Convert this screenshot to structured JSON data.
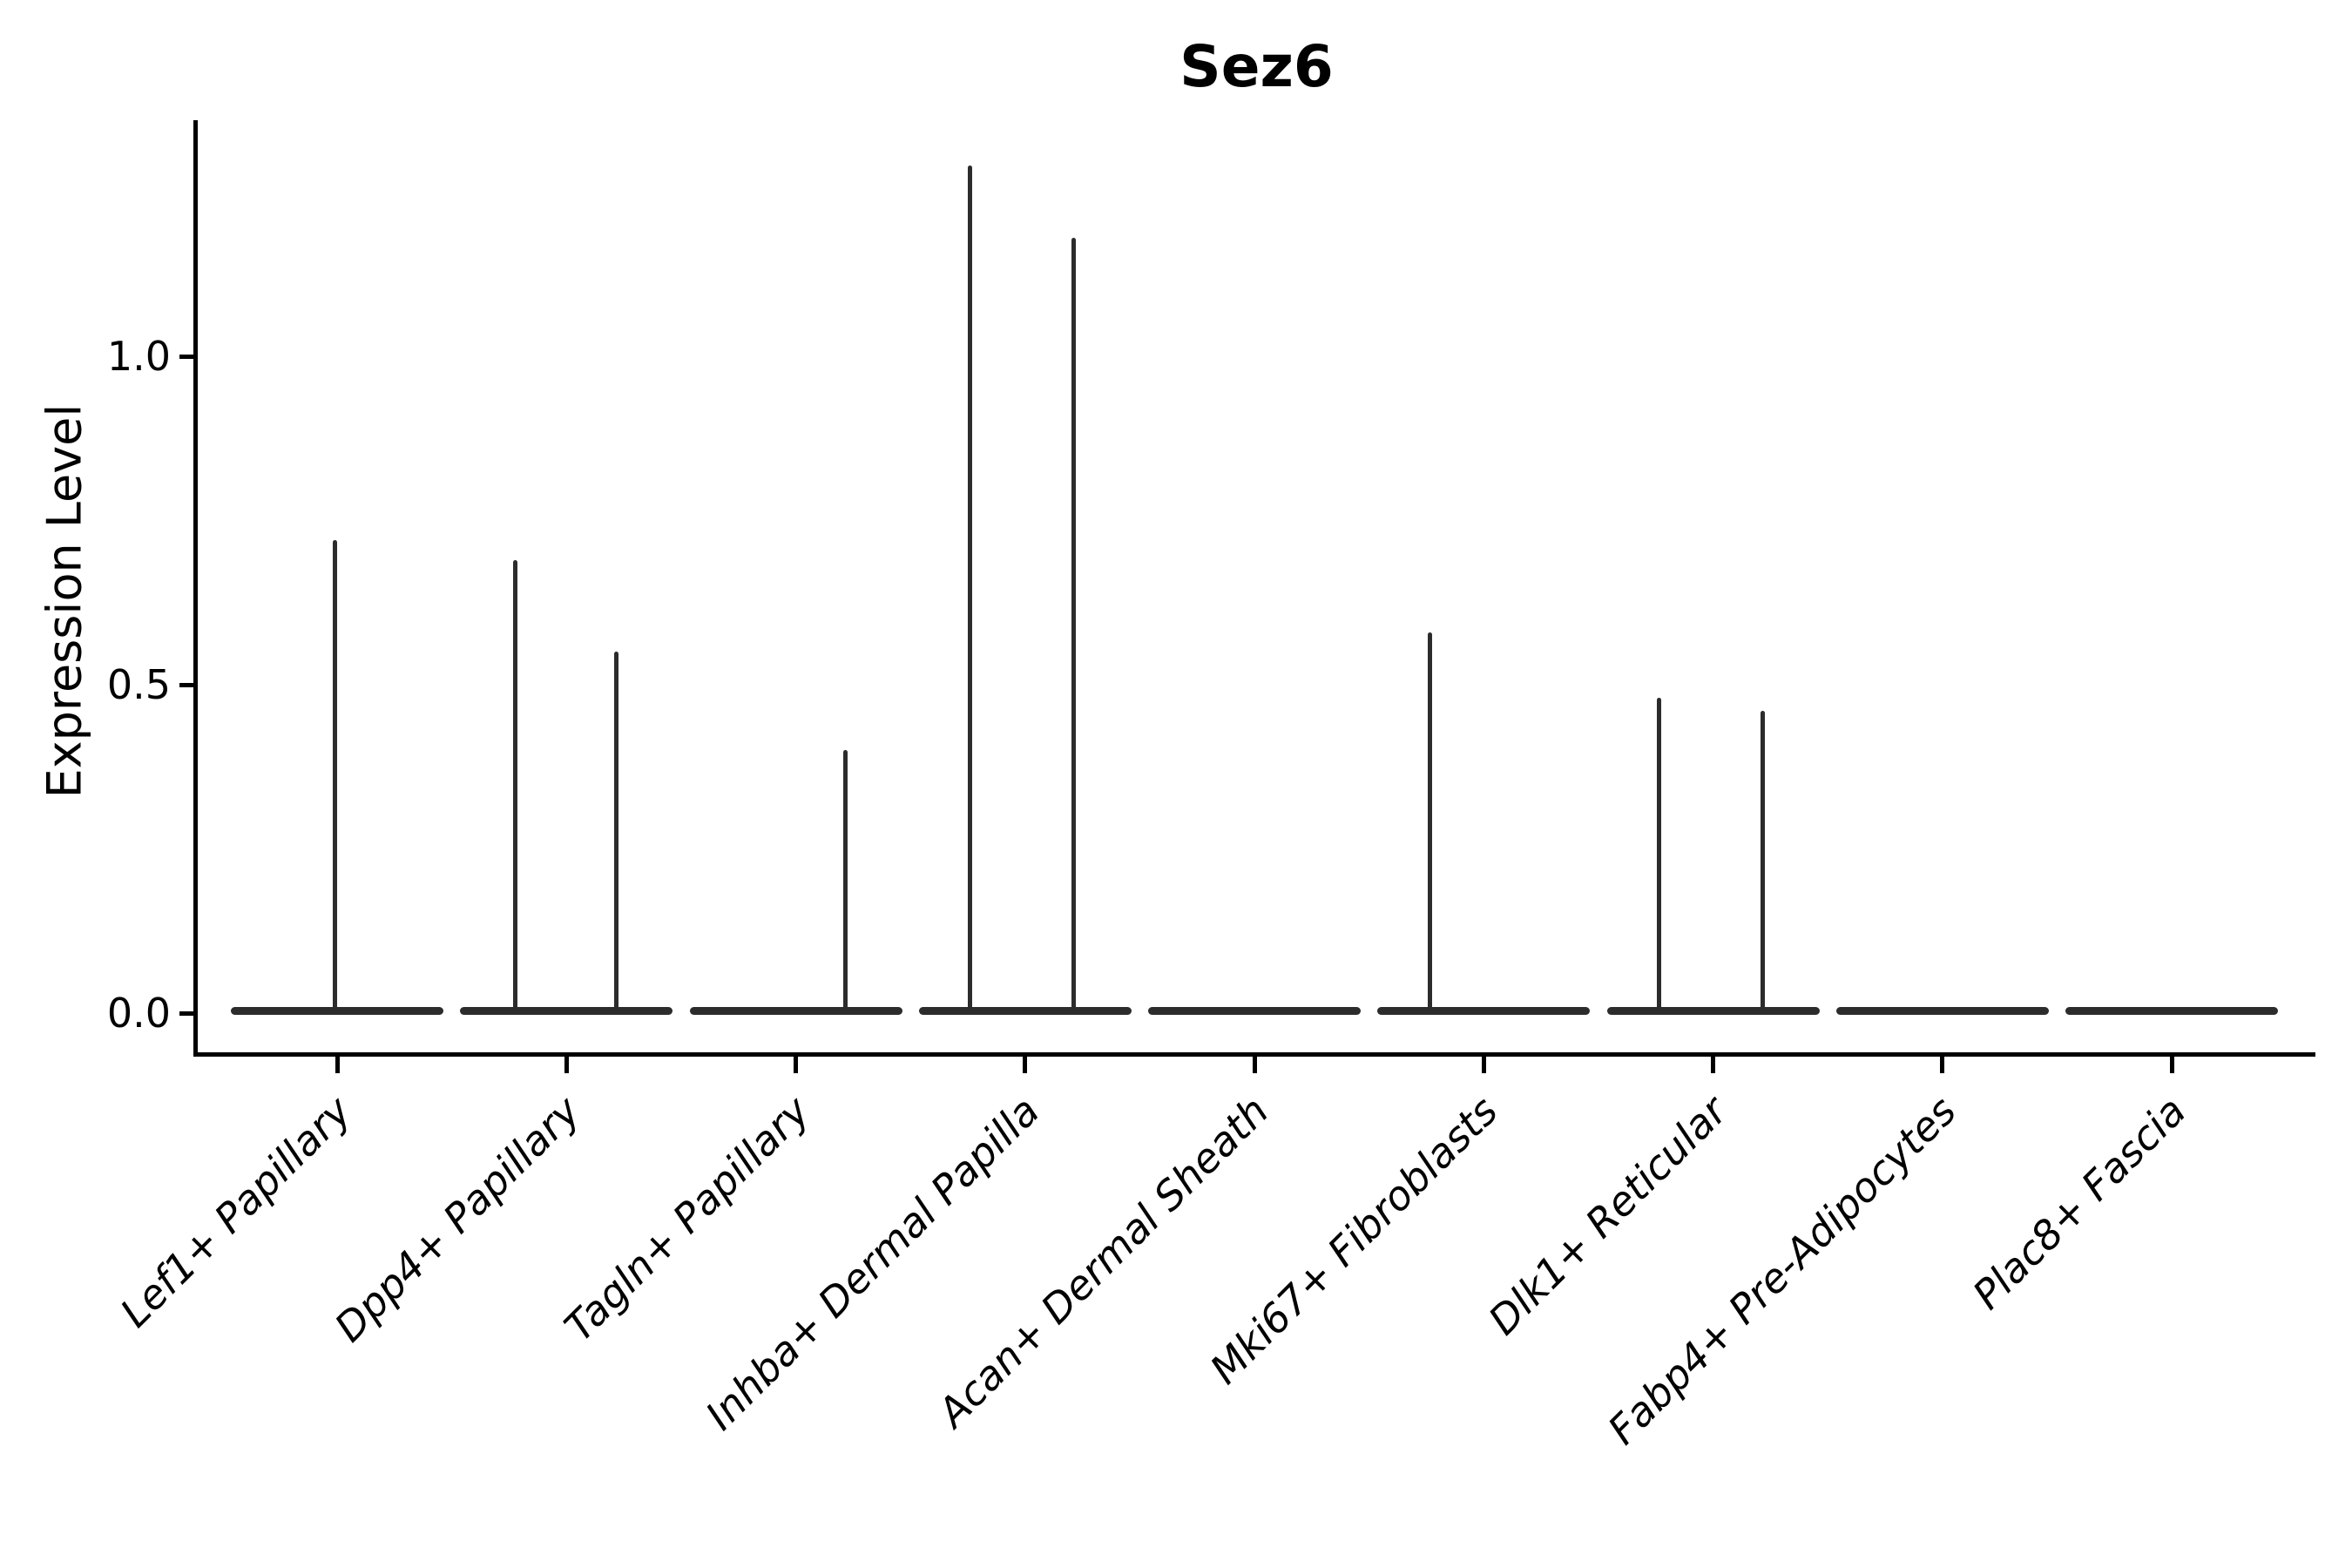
{
  "figure": {
    "background": "#ffffff",
    "ink_color": "#2c2c2c",
    "axis_color": "#000000"
  },
  "chart_data": {
    "type": "violin",
    "title": "Sez6",
    "xlabel": "",
    "ylabel": "Expression Level",
    "yticks": [
      "0.0",
      "0.5",
      "1.0"
    ],
    "ytick_values": [
      0.0,
      0.5,
      1.0
    ],
    "ylim": [
      0,
      1.36
    ],
    "grid": false,
    "legend": null,
    "note": "Each category shows a collapsed violin body at expression 0 (flat bar) plus thin density spikes reaching the maxima listed in spikes[].value; spike_offset is horizontal offset from category center in px of the 2700px-wide render.",
    "categories": [
      {
        "label": "Lef1+ Papillary",
        "body_value": 0,
        "spikes": [
          {
            "offset": -3,
            "value": 0.72
          }
        ]
      },
      {
        "label": "Dpp4+ Papillary",
        "body_value": 0,
        "spikes": [
          {
            "offset": -59,
            "value": 0.69
          },
          {
            "offset": 57,
            "value": 0.55
          }
        ]
      },
      {
        "label": "Tagln+ Papillary",
        "body_value": 0,
        "spikes": [
          {
            "offset": 57,
            "value": 0.4
          }
        ]
      },
      {
        "label": "Inhba+ Dermal Papilla",
        "body_value": 0,
        "spikes": [
          {
            "offset": -63,
            "value": 1.29
          },
          {
            "offset": 56,
            "value": 1.18
          }
        ]
      },
      {
        "label": "Acan+ Dermal Sheath",
        "body_value": 0,
        "spikes": []
      },
      {
        "label": "Mki67+ Fibroblasts",
        "body_value": 0,
        "spikes": [
          {
            "offset": -62,
            "value": 0.58
          }
        ]
      },
      {
        "label": "Dlk1+ Reticular",
        "body_value": 0,
        "spikes": [
          {
            "offset": -62,
            "value": 0.48
          },
          {
            "offset": 57,
            "value": 0.46
          }
        ]
      },
      {
        "label": "Fabp4+ Pre-Adipocytes",
        "body_value": 0,
        "spikes": []
      },
      {
        "label": "Plac8+ Fascia",
        "body_value": 0,
        "spikes": []
      }
    ]
  }
}
